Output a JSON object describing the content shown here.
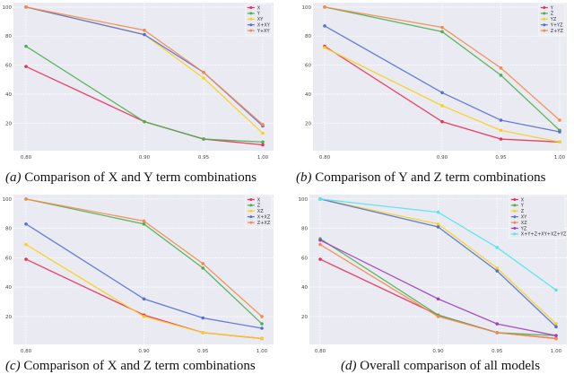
{
  "chart_data": [
    {
      "type": "line",
      "caption_label": "(a)",
      "caption": "Comparison of X and Y term combinations",
      "x": [
        0.8,
        0.9,
        0.95,
        1.0
      ],
      "xticks": [
        "0.80",
        "0.90",
        "0.95",
        "1.00"
      ],
      "yticks": [
        "20",
        "40",
        "60",
        "80",
        "100"
      ],
      "ylim": [
        1,
        103
      ],
      "grid": true,
      "legend": "top-right",
      "series": [
        {
          "name": "X",
          "color": "#e8305a",
          "values": [
            59,
            21,
            9,
            5
          ]
        },
        {
          "name": "Y",
          "color": "#4cb050",
          "values": [
            73,
            21,
            9,
            7
          ]
        },
        {
          "name": "XY",
          "color": "#f7d21c",
          "values": [
            100,
            81,
            51,
            13
          ]
        },
        {
          "name": "X+XY",
          "color": "#5470d6",
          "values": [
            100,
            81,
            55,
            18
          ]
        },
        {
          "name": "Y+XY",
          "color": "#f58a4b",
          "values": [
            100,
            84,
            55,
            19
          ]
        }
      ]
    },
    {
      "type": "line",
      "caption_label": "(b)",
      "caption": "Comparison of Y and Z term combinations",
      "x": [
        0.8,
        0.9,
        0.95,
        1.0
      ],
      "xticks": [
        "0.80",
        "0.90",
        "0.95",
        "1.00"
      ],
      "yticks": [
        "20",
        "40",
        "60",
        "80",
        "100"
      ],
      "ylim": [
        1,
        103
      ],
      "grid": true,
      "legend": "top-right",
      "series": [
        {
          "name": "Y",
          "color": "#e8305a",
          "values": [
            73,
            21,
            9,
            7
          ]
        },
        {
          "name": "Z",
          "color": "#4cb050",
          "values": [
            100,
            83,
            53,
            15
          ]
        },
        {
          "name": "YZ",
          "color": "#f7d21c",
          "values": [
            72,
            32,
            15,
            7
          ]
        },
        {
          "name": "Y+YZ",
          "color": "#5470d6",
          "values": [
            87,
            41,
            22,
            14
          ]
        },
        {
          "name": "Z+YZ",
          "color": "#f58a4b",
          "values": [
            100,
            86,
            58,
            22
          ]
        }
      ]
    },
    {
      "type": "line",
      "caption_label": "(c)",
      "caption": "Comparison of X and Z term combinations",
      "x": [
        0.8,
        0.9,
        0.95,
        1.0
      ],
      "xticks": [
        "0.80",
        "0.90",
        "0.95",
        "1.00"
      ],
      "yticks": [
        "20",
        "40",
        "60",
        "80",
        "100"
      ],
      "ylim": [
        1,
        103
      ],
      "grid": true,
      "legend": "top-right",
      "series": [
        {
          "name": "X",
          "color": "#e8305a",
          "values": [
            59,
            21,
            9,
            5
          ]
        },
        {
          "name": "Z",
          "color": "#4cb050",
          "values": [
            100,
            83,
            53,
            15
          ]
        },
        {
          "name": "XZ",
          "color": "#f7d21c",
          "values": [
            69,
            20,
            9,
            5
          ]
        },
        {
          "name": "X+XZ",
          "color": "#5470d6",
          "values": [
            83,
            32,
            19,
            12
          ]
        },
        {
          "name": "Z+XZ",
          "color": "#f58a4b",
          "values": [
            100,
            85,
            56,
            20
          ]
        }
      ]
    },
    {
      "type": "line",
      "caption_label": "(d)",
      "caption": "Overall comparison of all models",
      "x": [
        0.8,
        0.9,
        0.95,
        1.0
      ],
      "xticks": [
        "0.80",
        "0.90",
        "0.95",
        "1.00"
      ],
      "yticks": [
        "20",
        "40",
        "60",
        "80",
        "100"
      ],
      "ylim": [
        1,
        103
      ],
      "grid": true,
      "legend": "top-right",
      "series": [
        {
          "name": "X",
          "color": "#e8305a",
          "values": [
            59,
            21,
            9,
            5
          ]
        },
        {
          "name": "Y",
          "color": "#4cb050",
          "values": [
            73,
            21,
            9,
            7
          ]
        },
        {
          "name": "Z",
          "color": "#f7d21c",
          "values": [
            100,
            83,
            53,
            15
          ]
        },
        {
          "name": "XY",
          "color": "#5470d6",
          "values": [
            100,
            81,
            51,
            13
          ]
        },
        {
          "name": "XZ",
          "color": "#f58a4b",
          "values": [
            69,
            20,
            9,
            5
          ]
        },
        {
          "name": "YZ",
          "color": "#a040c0",
          "values": [
            72,
            32,
            15,
            7
          ]
        },
        {
          "name": "X+Y+Z+XY+XZ+YZ",
          "color": "#52e6f0",
          "values": [
            100,
            91,
            67,
            38
          ]
        }
      ]
    }
  ]
}
